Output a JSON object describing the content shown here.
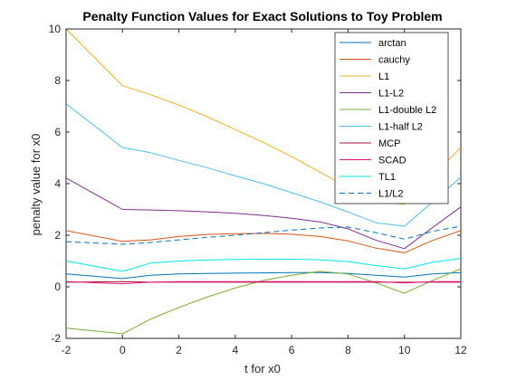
{
  "chart_data": {
    "type": "line",
    "title": "Penalty Function Values for Exact Solutions to Toy Problem",
    "xlabel": "t for x0",
    "ylabel": "penalty value for x0",
    "xlim": [
      -2,
      12
    ],
    "ylim": [
      -2,
      10
    ],
    "xticks": [
      -2,
      0,
      2,
      4,
      6,
      8,
      10,
      12
    ],
    "yticks": [
      -2,
      0,
      2,
      4,
      6,
      8,
      10
    ],
    "grid": false,
    "legend_position": "top-right",
    "x": [
      -2,
      0,
      1,
      2,
      3,
      4,
      5,
      6,
      7,
      8,
      9,
      10,
      11,
      12
    ],
    "series": [
      {
        "name": "arctan",
        "color": "#0072BD",
        "dash": "solid",
        "values": [
          0.5,
          0.32,
          0.45,
          0.5,
          0.52,
          0.53,
          0.54,
          0.55,
          0.55,
          0.52,
          0.45,
          0.38,
          0.5,
          0.55
        ]
      },
      {
        "name": "cauchy",
        "color": "#D95319",
        "dash": "solid",
        "values": [
          2.18,
          1.76,
          1.82,
          1.95,
          2.03,
          2.06,
          2.07,
          2.04,
          1.95,
          1.78,
          1.5,
          1.32,
          1.8,
          2.18
        ]
      },
      {
        "name": "L1",
        "color": "#EDB120",
        "dash": "solid",
        "values": [
          10.0,
          7.8,
          7.45,
          7.05,
          6.6,
          6.1,
          5.6,
          5.05,
          4.45,
          3.85,
          3.3,
          3.2,
          4.3,
          5.4
        ]
      },
      {
        "name": "L1-L2",
        "color": "#7E2F8E",
        "dash": "solid",
        "values": [
          4.22,
          3.0,
          2.98,
          2.95,
          2.91,
          2.85,
          2.77,
          2.66,
          2.52,
          2.25,
          1.8,
          1.48,
          2.3,
          3.1
        ]
      },
      {
        "name": "L1-double L2",
        "color": "#77AC30",
        "dash": "solid",
        "values": [
          -1.6,
          -1.82,
          -1.25,
          -0.8,
          -0.4,
          -0.05,
          0.25,
          0.45,
          0.6,
          0.5,
          0.15,
          -0.25,
          0.25,
          0.7
        ]
      },
      {
        "name": "L1-half L2",
        "color": "#4DBEEE",
        "dash": "solid",
        "values": [
          7.1,
          5.4,
          5.2,
          4.9,
          4.62,
          4.3,
          4.0,
          3.65,
          3.3,
          2.9,
          2.48,
          2.35,
          3.3,
          4.25
        ]
      },
      {
        "name": "MCP",
        "color": "#A2142F",
        "dash": "solid",
        "values": [
          0.18,
          0.2,
          0.18,
          0.18,
          0.18,
          0.18,
          0.18,
          0.18,
          0.18,
          0.18,
          0.18,
          0.18,
          0.18,
          0.18
        ]
      },
      {
        "name": "SCAD",
        "color": "#E8117F",
        "dash": "solid",
        "values": [
          0.2,
          0.12,
          0.18,
          0.2,
          0.2,
          0.2,
          0.2,
          0.2,
          0.2,
          0.2,
          0.2,
          0.15,
          0.2,
          0.2
        ]
      },
      {
        "name": "TL1",
        "color": "#00E6E6",
        "dash": "solid",
        "values": [
          1.0,
          0.6,
          0.92,
          1.0,
          1.04,
          1.06,
          1.07,
          1.07,
          1.05,
          0.98,
          0.82,
          0.7,
          0.95,
          1.1
        ]
      },
      {
        "name": "L1/L2",
        "color": "#0072BD",
        "dash": "dashed",
        "values": [
          1.75,
          1.65,
          1.72,
          1.82,
          1.92,
          2.0,
          2.1,
          2.2,
          2.28,
          2.32,
          2.1,
          1.85,
          2.15,
          2.35
        ]
      }
    ]
  }
}
